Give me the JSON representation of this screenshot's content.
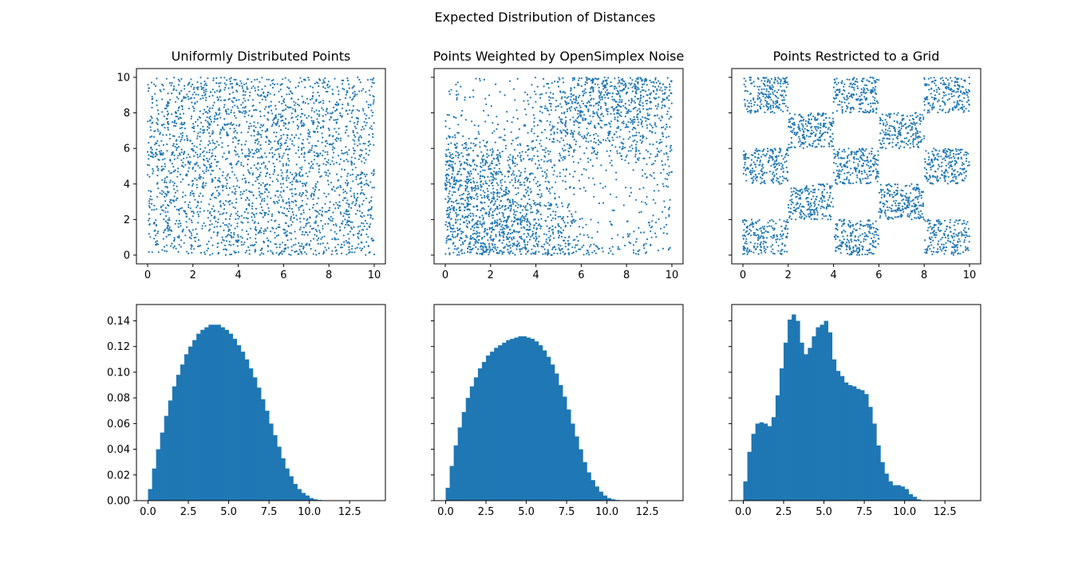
{
  "figure": {
    "suptitle": "Expected Distribution of Distances",
    "color": "#1f77b4"
  },
  "chart_data": [
    {
      "type": "scatter",
      "title": "Uniformly Distributed Points",
      "distribution": "uniform",
      "xlim": [
        0,
        10
      ],
      "ylim": [
        0,
        10
      ],
      "xticks": [
        "0",
        "2",
        "4",
        "6",
        "8",
        "10"
      ],
      "yticks": [
        "0",
        "2",
        "4",
        "6",
        "8",
        "10"
      ],
      "show_ytick_labels": true
    },
    {
      "type": "scatter",
      "title": "Points Weighted by OpenSimplex Noise",
      "distribution": "noise-weighted",
      "xlim": [
        0,
        10
      ],
      "ylim": [
        0,
        10
      ],
      "xticks": [
        "0",
        "2",
        "4",
        "6",
        "8",
        "10"
      ],
      "yticks": [
        "0",
        "2",
        "4",
        "6",
        "8",
        "10"
      ],
      "show_ytick_labels": false
    },
    {
      "type": "scatter",
      "title": "Points Restricted to a Grid",
      "distribution": "checkerboard grid, cells of size 2",
      "xlim": [
        0,
        10
      ],
      "ylim": [
        0,
        10
      ],
      "xticks": [
        "0",
        "2",
        "4",
        "6",
        "8",
        "10"
      ],
      "yticks": [
        "0",
        "2",
        "4",
        "6",
        "8",
        "10"
      ],
      "show_ytick_labels": false
    },
    {
      "type": "bar",
      "title": "",
      "bin_width": 0.25,
      "xlim": [
        0,
        14.5
      ],
      "ylim": [
        0,
        0.14
      ],
      "xticks": [
        "0.0",
        "2.5",
        "5.0",
        "7.5",
        "10.0",
        "12.5"
      ],
      "yticks": [
        "0.00",
        "0.02",
        "0.04",
        "0.06",
        "0.08",
        "0.10",
        "0.12",
        "0.14"
      ],
      "show_ytick_labels": true,
      "values": [
        0.009,
        0.025,
        0.04,
        0.053,
        0.066,
        0.078,
        0.089,
        0.098,
        0.106,
        0.114,
        0.12,
        0.125,
        0.13,
        0.133,
        0.135,
        0.137,
        0.137,
        0.137,
        0.135,
        0.133,
        0.13,
        0.126,
        0.121,
        0.116,
        0.11,
        0.103,
        0.096,
        0.088,
        0.079,
        0.07,
        0.06,
        0.051,
        0.042,
        0.033,
        0.025,
        0.019,
        0.013,
        0.009,
        0.006,
        0.004,
        0.002,
        0.001,
        0.0005,
        0.0002
      ]
    },
    {
      "type": "bar",
      "title": "",
      "bin_width": 0.25,
      "xlim": [
        0,
        14.5
      ],
      "ylim": [
        0,
        0.14
      ],
      "xticks": [
        "0.0",
        "2.5",
        "5.0",
        "7.5",
        "10.0",
        "12.5"
      ],
      "yticks": [
        "0.00",
        "0.02",
        "0.04",
        "0.06",
        "0.08",
        "0.10",
        "0.12",
        "0.14"
      ],
      "show_ytick_labels": false,
      "values": [
        0.01,
        0.027,
        0.043,
        0.057,
        0.069,
        0.08,
        0.089,
        0.096,
        0.103,
        0.108,
        0.113,
        0.116,
        0.119,
        0.121,
        0.123,
        0.125,
        0.126,
        0.127,
        0.128,
        0.128,
        0.127,
        0.126,
        0.124,
        0.121,
        0.117,
        0.112,
        0.106,
        0.099,
        0.09,
        0.081,
        0.071,
        0.06,
        0.05,
        0.04,
        0.03,
        0.022,
        0.016,
        0.011,
        0.007,
        0.004,
        0.002,
        0.001,
        0.0005,
        0.0002
      ]
    },
    {
      "type": "bar",
      "title": "",
      "bin_width": 0.25,
      "xlim": [
        0,
        14.5
      ],
      "ylim": [
        0,
        0.14
      ],
      "xticks": [
        "0.0",
        "2.5",
        "5.0",
        "7.5",
        "10.0",
        "12.5"
      ],
      "yticks": [
        "0.00",
        "0.02",
        "0.04",
        "0.06",
        "0.08",
        "0.10",
        "0.12",
        "0.14"
      ],
      "show_ytick_labels": false,
      "values": [
        0.015,
        0.038,
        0.052,
        0.06,
        0.061,
        0.06,
        0.058,
        0.065,
        0.082,
        0.103,
        0.123,
        0.141,
        0.145,
        0.14,
        0.123,
        0.114,
        0.119,
        0.128,
        0.135,
        0.137,
        0.14,
        0.131,
        0.11,
        0.101,
        0.097,
        0.092,
        0.09,
        0.089,
        0.087,
        0.086,
        0.083,
        0.073,
        0.06,
        0.043,
        0.03,
        0.021,
        0.015,
        0.012,
        0.012,
        0.011,
        0.009,
        0.005,
        0.003,
        0.001
      ]
    }
  ]
}
